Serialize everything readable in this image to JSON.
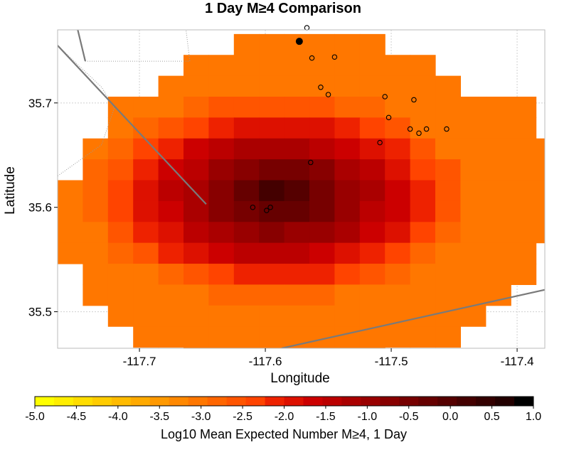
{
  "chart_data": {
    "type": "heatmap",
    "title": "1 Day M≥4 Comparison",
    "xlabel": "Longitude",
    "ylabel": "Latitude",
    "xlim": [
      -117.765,
      -117.378
    ],
    "ylim": [
      35.465,
      35.77
    ],
    "x_ticks": [
      -117.7,
      -117.6,
      -117.5,
      -117.4
    ],
    "x_tick_labels": [
      "-117.7",
      "-117.6",
      "-117.5",
      "-117.4"
    ],
    "y_ticks": [
      35.5,
      35.6,
      35.7
    ],
    "y_tick_labels": [
      "35.5",
      "35.6",
      "35.7"
    ],
    "grid": true,
    "cell_size_deg": 0.02,
    "grid_origin": {
      "lon": -117.765,
      "lat": 35.766
    },
    "row_spans": [
      {
        "row": 0,
        "start_col": 7,
        "end_col": 12
      },
      {
        "row": 1,
        "start_col": 5,
        "end_col": 14
      },
      {
        "row": 2,
        "start_col": 4,
        "end_col": 15
      },
      {
        "row": 3,
        "start_col": 2,
        "end_col": 18
      },
      {
        "row": 4,
        "start_col": 2,
        "end_col": 18
      },
      {
        "row": 5,
        "start_col": 1,
        "end_col": 19
      },
      {
        "row": 6,
        "start_col": 1,
        "end_col": 19
      },
      {
        "row": 7,
        "start_col": 0,
        "end_col": 19
      },
      {
        "row": 8,
        "start_col": 0,
        "end_col": 19
      },
      {
        "row": 9,
        "start_col": 0,
        "end_col": 19
      },
      {
        "row": 10,
        "start_col": 0,
        "end_col": 18
      },
      {
        "row": 11,
        "start_col": 1,
        "end_col": 18
      },
      {
        "row": 12,
        "start_col": 1,
        "end_col": 17
      },
      {
        "row": 13,
        "start_col": 2,
        "end_col": 16
      },
      {
        "row": 14,
        "start_col": 3,
        "end_col": 15
      },
      {
        "row": 15,
        "start_col": 5,
        "end_col": 12
      },
      {
        "row": 16,
        "start_col": 7,
        "end_col": 9
      }
    ],
    "peak": {
      "lon": -117.59,
      "lat": 35.61,
      "value": 0.3
    },
    "base_value": -3.1,
    "colorscale": {
      "min": -5.0,
      "max": 1.0,
      "ticks": [
        -5.0,
        -4.5,
        -4.0,
        -3.5,
        -3.0,
        -2.5,
        -2.0,
        -1.5,
        -1.0,
        -0.5,
        0.0,
        0.5,
        1.0
      ],
      "tick_labels": [
        "-5.0",
        "-4.5",
        "-4.0",
        "-3.5",
        "-3.0",
        "-2.5",
        "-2.0",
        "-1.5",
        "-1.0",
        "-0.5",
        "0.0",
        "0.5",
        "1.0"
      ],
      "colors": [
        "#ffff00",
        "#ffee00",
        "#ffdd00",
        "#ffcc00",
        "#ffbb00",
        "#ffaa00",
        "#ff9900",
        "#ff8800",
        "#ff7700",
        "#ff6600",
        "#ff5500",
        "#ff4400",
        "#ee2200",
        "#dd1100",
        "#cc0000",
        "#bb0000",
        "#aa0000",
        "#990000",
        "#880000",
        "#770000",
        "#660000",
        "#550000",
        "#440000",
        "#330000",
        "#220000",
        "#000000"
      ],
      "label": "Log10 Mean Expected Number M≥4, 1 Day"
    },
    "events": [
      {
        "lon": -117.567,
        "lat": 35.772,
        "filled": false
      },
      {
        "lon": -117.573,
        "lat": 35.759,
        "filled": true
      },
      {
        "lon": -117.563,
        "lat": 35.743,
        "filled": false
      },
      {
        "lon": -117.545,
        "lat": 35.744,
        "filled": false
      },
      {
        "lon": -117.556,
        "lat": 35.715,
        "filled": false
      },
      {
        "lon": -117.55,
        "lat": 35.708,
        "filled": false
      },
      {
        "lon": -117.505,
        "lat": 35.706,
        "filled": false
      },
      {
        "lon": -117.482,
        "lat": 35.703,
        "filled": false
      },
      {
        "lon": -117.502,
        "lat": 35.686,
        "filled": false
      },
      {
        "lon": -117.485,
        "lat": 35.675,
        "filled": false
      },
      {
        "lon": -117.478,
        "lat": 35.671,
        "filled": false
      },
      {
        "lon": -117.472,
        "lat": 35.675,
        "filled": false
      },
      {
        "lon": -117.456,
        "lat": 35.675,
        "filled": false
      },
      {
        "lon": -117.509,
        "lat": 35.662,
        "filled": false
      },
      {
        "lon": -117.564,
        "lat": 35.643,
        "filled": false
      },
      {
        "lon": -117.61,
        "lat": 35.6,
        "filled": false
      },
      {
        "lon": -117.599,
        "lat": 35.597,
        "filled": false
      },
      {
        "lon": -117.596,
        "lat": 35.6,
        "filled": false
      }
    ],
    "faults": [
      [
        [
          -117.765,
          35.755
        ],
        [
          -117.647,
          35.603
        ]
      ],
      [
        [
          -117.752,
          35.785
        ],
        [
          -117.743,
          35.74
        ]
      ],
      [
        [
          -117.587,
          35.465
        ],
        [
          -117.378,
          35.521
        ]
      ]
    ],
    "boundaries": [
      [
        [
          -117.743,
          35.74
        ],
        [
          -117.66,
          35.74
        ],
        [
          -117.665,
          35.79
        ]
      ],
      [
        [
          -117.765,
          35.755
        ],
        [
          -117.73,
          35.715
        ],
        [
          -117.72,
          35.695
        ],
        [
          -117.73,
          35.66
        ],
        [
          -117.765,
          35.63
        ]
      ]
    ]
  }
}
